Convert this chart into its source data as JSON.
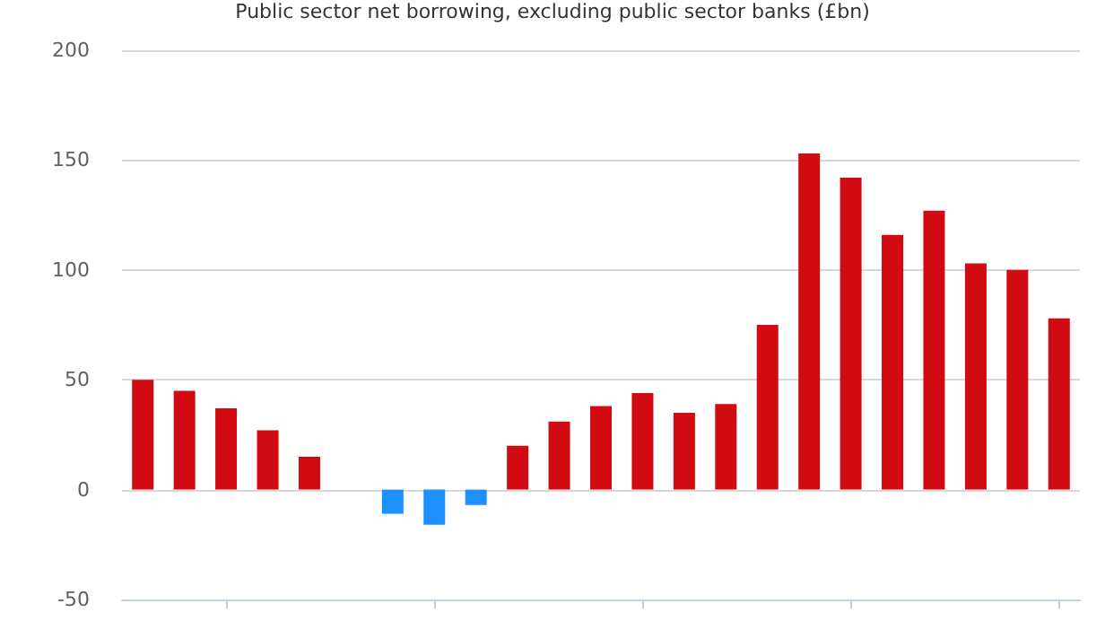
{
  "chart_data": {
    "type": "bar",
    "title": "Public sector net borrowing, excluding public sector banks (£bn)",
    "categories": [
      null,
      null,
      null,
      null,
      null,
      null,
      null,
      null,
      null,
      null,
      null,
      null,
      null,
      null,
      null,
      null,
      null,
      null,
      null,
      null,
      null,
      null,
      null
    ],
    "values": [
      50,
      45,
      37,
      27,
      15,
      0,
      -11,
      -16,
      -7,
      20,
      31,
      38,
      44,
      35,
      39,
      75,
      153,
      142,
      116,
      127,
      103,
      100,
      78
    ],
    "colors": [
      "#d20a11",
      "#d20a11",
      "#d20a11",
      "#d20a11",
      "#d20a11",
      "#d20a11",
      "#1e90ff",
      "#1e90ff",
      "#1e90ff",
      "#d20a11",
      "#d20a11",
      "#d20a11",
      "#d20a11",
      "#d20a11",
      "#d20a11",
      "#d20a11",
      "#d20a11",
      "#d20a11",
      "#d20a11",
      "#d20a11",
      "#d20a11",
      "#d20a11",
      "#d20a11"
    ],
    "ylim": [
      -50,
      200
    ],
    "yticks": [
      -50,
      0,
      50,
      100,
      150,
      200
    ],
    "grid": "y"
  }
}
